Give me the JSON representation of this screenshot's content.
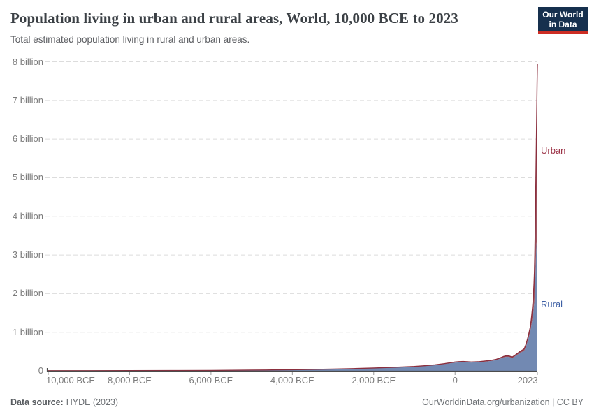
{
  "logo": {
    "line1": "Our World",
    "line2": "in Data",
    "bg_color": "#16304e",
    "bar_color": "#cd2d24"
  },
  "footer": {
    "source_label": "Data source:",
    "source_value": "HYDE (2023)",
    "attribution": "OurWorldinData.org/urbanization | CC BY"
  },
  "chart_data": {
    "type": "area",
    "stacked": true,
    "title": "Population living in urban and rural areas, World, 10,000 BCE to 2023",
    "subtitle": "Total estimated population living in rural and urban areas.",
    "xlabel": "",
    "ylabel": "",
    "unit": "billion people",
    "xlim": [
      -10000,
      2023
    ],
    "ylim": [
      0,
      8
    ],
    "grid": "horizontal-dashed",
    "legend_position": "inline-right",
    "x": [
      -10000,
      -9000,
      -8000,
      -7000,
      -6000,
      -5000,
      -4500,
      -4000,
      -3500,
      -3000,
      -2500,
      -2000,
      -1500,
      -1000,
      -750,
      -500,
      -250,
      0,
      100,
      200,
      300,
      400,
      500,
      600,
      700,
      800,
      900,
      1000,
      1100,
      1150,
      1200,
      1250,
      1300,
      1340,
      1400,
      1450,
      1500,
      1550,
      1600,
      1650,
      1700,
      1750,
      1800,
      1850,
      1875,
      1900,
      1920,
      1940,
      1950,
      1960,
      1970,
      1980,
      1990,
      2000,
      2010,
      2015,
      2020,
      2023
    ],
    "series": [
      {
        "name": "Rural",
        "fill_color": "#7289b2",
        "line_color": "#4c669f",
        "label_color": "#3d5fa5",
        "values": [
          0.004,
          0.004,
          0.005,
          0.008,
          0.011,
          0.018,
          0.022,
          0.028,
          0.036,
          0.044,
          0.056,
          0.07,
          0.088,
          0.11,
          0.128,
          0.148,
          0.178,
          0.213,
          0.22,
          0.224,
          0.219,
          0.214,
          0.219,
          0.225,
          0.235,
          0.245,
          0.258,
          0.275,
          0.31,
          0.33,
          0.35,
          0.36,
          0.362,
          0.354,
          0.33,
          0.358,
          0.395,
          0.43,
          0.465,
          0.49,
          0.52,
          0.65,
          0.83,
          1.03,
          1.18,
          1.34,
          1.48,
          1.7,
          1.8,
          2.02,
          2.34,
          2.7,
          3.03,
          3.28,
          3.36,
          3.4,
          3.42,
          3.43
        ]
      },
      {
        "name": "Urban",
        "fill_color": "#9e5560",
        "line_color": "#8b2f3e",
        "label_color": "#9a2f43",
        "values": [
          0,
          0,
          0,
          0,
          0,
          0.001,
          0.001,
          0.001,
          0.001,
          0.002,
          0.002,
          0.003,
          0.003,
          0.004,
          0.005,
          0.007,
          0.01,
          0.017,
          0.018,
          0.018,
          0.016,
          0.015,
          0.014,
          0.014,
          0.015,
          0.016,
          0.017,
          0.019,
          0.021,
          0.023,
          0.025,
          0.027,
          0.028,
          0.027,
          0.025,
          0.028,
          0.031,
          0.035,
          0.04,
          0.045,
          0.05,
          0.058,
          0.072,
          0.11,
          0.17,
          0.26,
          0.36,
          0.57,
          0.75,
          1.01,
          1.35,
          1.76,
          2.29,
          2.87,
          3.6,
          4.0,
          4.35,
          4.52
        ]
      }
    ],
    "y_ticks": [
      {
        "value": 0,
        "label": "0"
      },
      {
        "value": 1,
        "label": "1 billion"
      },
      {
        "value": 2,
        "label": "2 billion"
      },
      {
        "value": 3,
        "label": "3 billion"
      },
      {
        "value": 4,
        "label": "4 billion"
      },
      {
        "value": 5,
        "label": "5 billion"
      },
      {
        "value": 6,
        "label": "6 billion"
      },
      {
        "value": 7,
        "label": "7 billion"
      },
      {
        "value": 8,
        "label": "8 billion"
      }
    ],
    "x_ticks": [
      {
        "value": -10000,
        "label": "10,000 BCE",
        "align": "left"
      },
      {
        "value": -8000,
        "label": "8,000 BCE",
        "align": "center"
      },
      {
        "value": -6000,
        "label": "6,000 BCE",
        "align": "center"
      },
      {
        "value": -4000,
        "label": "4,000 BCE",
        "align": "center"
      },
      {
        "value": -2000,
        "label": "2,000 BCE",
        "align": "center"
      },
      {
        "value": 0,
        "label": "0",
        "align": "center"
      },
      {
        "value": 2023,
        "label": "2023",
        "align": "right"
      }
    ],
    "colors": {
      "grid": "#dcdcdc",
      "axis": "#4c4c4c",
      "tick": "#9a9a9a",
      "background": "#ffffff"
    }
  }
}
